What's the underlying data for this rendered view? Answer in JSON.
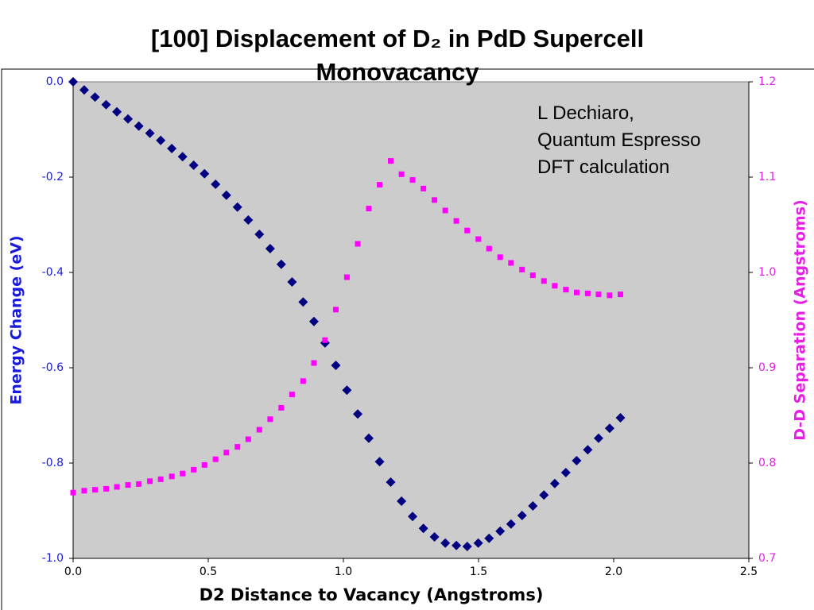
{
  "chart_data": {
    "type": "scatter",
    "title": "[100] Displacement of D₂ in PdD Supercell Monovacancy",
    "annotation": "L Dechiaro,\nQuantum Espresso\nDFT calculation",
    "xlabel": "D2 Distance to Vacancy (Angstroms)",
    "ylabel": "Energy Change (eV)",
    "y2label": "D-D Separation (Angstroms)",
    "xlim": [
      0,
      2.5
    ],
    "xticks": [
      {
        "value": 0,
        "label": "0.0"
      },
      0.5,
      {
        "value": 1,
        "label": "1.0"
      },
      1.5,
      {
        "value": 2,
        "label": "2.0"
      },
      2.5
    ],
    "ylim": [
      -1,
      0
    ],
    "yticks": [
      {
        "value": 0,
        "label": "0.0"
      },
      -0.2,
      -0.4,
      -0.6,
      -0.8,
      {
        "value": -1,
        "label": "-1.0"
      }
    ],
    "y2lim": [
      0.7,
      1.2
    ],
    "y2ticks": [
      1.2,
      1.1,
      {
        "value": 1,
        "label": "1.0"
      },
      0.9,
      0.8,
      0.7
    ],
    "ylabel_color": "#1a1adb",
    "y2label_color": "#e61ee6",
    "x": [
      0,
      0.041,
      0.081,
      0.122,
      0.162,
      0.203,
      0.243,
      0.284,
      0.324,
      0.365,
      0.405,
      0.446,
      0.486,
      0.527,
      0.567,
      0.608,
      0.648,
      0.689,
      0.729,
      0.77,
      0.81,
      0.851,
      0.891,
      0.932,
      0.972,
      1.013,
      1.053,
      1.094,
      1.134,
      1.175,
      1.215,
      1.256,
      1.296,
      1.337,
      1.377,
      1.418,
      1.458,
      1.499,
      1.539,
      1.58,
      1.62,
      1.661,
      1.701,
      1.742,
      1.782,
      1.823,
      1.863,
      1.904,
      1.944,
      1.985,
      2.025
    ],
    "series": [
      {
        "color": "#000080",
        "marker": "diamond",
        "axis": "y",
        "values": [
          0,
          -0.017,
          -0.032,
          -0.048,
          -0.063,
          -0.078,
          -0.093,
          -0.108,
          -0.123,
          -0.14,
          -0.157,
          -0.175,
          -0.193,
          -0.215,
          -0.238,
          -0.263,
          -0.29,
          -0.32,
          -0.35,
          -0.383,
          -0.42,
          -0.462,
          -0.503,
          -0.548,
          -0.595,
          -0.647,
          -0.697,
          -0.748,
          -0.797,
          -0.84,
          -0.88,
          -0.912,
          -0.937,
          -0.955,
          -0.968,
          -0.973,
          -0.975,
          -0.968,
          -0.958,
          -0.943,
          -0.928,
          -0.91,
          -0.89,
          -0.867,
          -0.843,
          -0.82,
          -0.795,
          -0.772,
          -0.748,
          -0.727,
          -0.705
        ]
      },
      {
        "color": "#ff00ff",
        "marker": "square",
        "axis": "y2",
        "values": [
          0.769,
          0.771,
          0.772,
          0.773,
          0.775,
          0.777,
          0.778,
          0.781,
          0.783,
          0.786,
          0.789,
          0.793,
          0.798,
          0.804,
          0.811,
          0.817,
          0.825,
          0.835,
          0.846,
          0.858,
          0.872,
          0.886,
          0.905,
          0.929,
          0.961,
          0.995,
          1.03,
          1.067,
          1.092,
          1.117,
          1.103,
          1.097,
          1.088,
          1.076,
          1.065,
          1.054,
          1.044,
          1.035,
          1.025,
          1.016,
          1.01,
          1.003,
          0.997,
          0.991,
          0.986,
          0.982,
          0.979,
          0.978,
          0.977,
          0.976,
          0.977
        ]
      }
    ]
  }
}
